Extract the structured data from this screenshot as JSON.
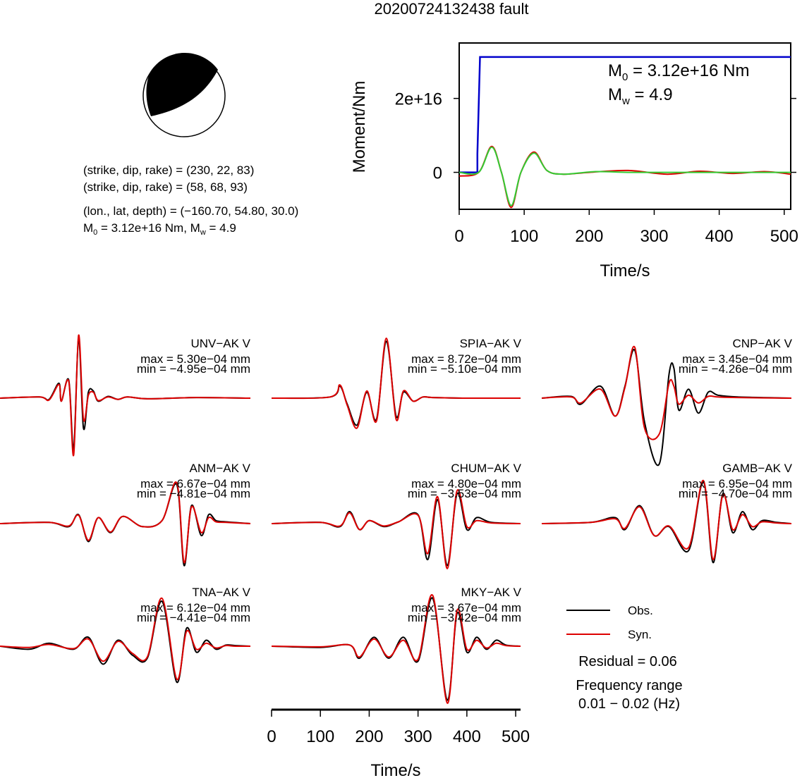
{
  "title": "20200724132438 fault",
  "mechanism": {
    "line1": "(strike, dip, rake) = (230, 22, 83)",
    "line2": "(strike, dip, rake) = (58, 68, 93)",
    "line3": "(lon., lat, depth) = (−160.70, 54.80, 30.0)",
    "m0_label": "M",
    "m0_sub": "0",
    "m0_value": " = 3.12e+16 Nm, M",
    "mw_sub": "w",
    "mw_value": " = 4.9"
  },
  "moment_panel": {
    "ylabel": "Moment/Nm",
    "xlabel": "Time/s",
    "xticks": [
      "0",
      "100",
      "200",
      "300",
      "400",
      "500"
    ],
    "yticks": [
      "0",
      "2e+16"
    ],
    "m0_text": " = 3.12e+16 Nm",
    "mw_text": " = 4.9",
    "m_letter": "M",
    "m0_sub": "0",
    "mw_sub": "w"
  },
  "legend": {
    "obs": "Obs.",
    "syn": "Syn.",
    "residual": "Residual = 0.06",
    "freq_line1": "Frequency range",
    "freq_line2": "0.01 − 0.02 (Hz)"
  },
  "bottom_axis": {
    "xlabel": "Time/s",
    "ticks": [
      "0",
      "100",
      "200",
      "300",
      "400",
      "500"
    ]
  },
  "colors": {
    "observed": "#000000",
    "synthetic": "#dd0000",
    "moment": "#0000cc",
    "green": "#33cc33",
    "beachball_fill": "#000000"
  },
  "chart_data": [
    {
      "type": "line",
      "name": "moment-function",
      "xlabel": "Time/s",
      "ylabel": "Moment/Nm",
      "xlim": [
        0,
        510
      ],
      "ylim": [
        -1e+16,
        3.5e+16
      ],
      "series": [
        {
          "name": "moment",
          "color": "#0000cc",
          "x": [
            0,
            28,
            28,
            32,
            510
          ],
          "y": [
            0,
            0,
            5000000000000000.0,
            3.12e+16,
            3.12e+16
          ]
        },
        {
          "name": "red",
          "color": "#dd0000",
          "x": [
            0,
            30,
            50,
            65,
            80,
            95,
            115,
            135,
            160,
            200,
            260,
            320,
            370,
            420,
            470,
            510
          ],
          "y": [
            -1000000000000000.0,
            0,
            7000000000000000.0,
            0,
            -9500000000000000.0,
            0,
            5500000000000000.0,
            500000000000000.0,
            -500000000000000.0,
            0,
            500000000000000.0,
            -500000000000000.0,
            300000000000000.0,
            -300000000000000.0,
            200000000000000.0,
            -500000000000000.0
          ]
        },
        {
          "name": "green",
          "color": "#33cc33",
          "x": [
            0,
            30,
            50,
            65,
            80,
            95,
            115,
            135,
            160,
            210,
            260,
            320,
            370,
            420,
            470,
            510
          ],
          "y": [
            0,
            0,
            6800000000000000.0,
            0,
            -9000000000000000.0,
            0,
            5200000000000000.0,
            500000000000000.0,
            -500000000000000.0,
            200000000000000.0,
            0,
            0,
            0,
            0,
            0,
            0
          ]
        }
      ]
    },
    {
      "type": "line",
      "station": "UNV−AK V",
      "max": "max = 5.30e−04 mm",
      "min": "min = −4.95e−04 mm",
      "xlim": [
        0,
        510
      ],
      "series": [
        {
          "name": "Obs.",
          "x": [
            0,
            80,
            100,
            120,
            125,
            140,
            150,
            160,
            170,
            180,
            190,
            200,
            220,
            240,
            260,
            300,
            400,
            510
          ],
          "y": [
            0,
            0.02,
            -0.02,
            0.25,
            -0.05,
            0.3,
            -0.85,
            1.0,
            -0.5,
            0.1,
            0.12,
            -0.05,
            0.03,
            -0.02,
            0.02,
            -0.01,
            0.01,
            0
          ]
        },
        {
          "name": "Syn.",
          "x": [
            0,
            80,
            100,
            120,
            125,
            140,
            150,
            160,
            170,
            180,
            190,
            200,
            220,
            240,
            260,
            300,
            400,
            510
          ],
          "y": [
            0,
            0.02,
            -0.03,
            0.23,
            -0.05,
            0.28,
            -0.95,
            1.05,
            -0.35,
            0.05,
            0.1,
            -0.04,
            0.02,
            -0.02,
            0.02,
            -0.01,
            0.01,
            0
          ]
        }
      ]
    },
    {
      "type": "line",
      "station": "SPIA−AK V",
      "max": "max = 8.72e−04 mm",
      "min": "min = −5.10e−04 mm",
      "xlim": [
        0,
        510
      ],
      "series": [
        {
          "name": "Obs.",
          "x": [
            0,
            120,
            140,
            155,
            175,
            195,
            215,
            235,
            255,
            270,
            290,
            310,
            330,
            400,
            510
          ],
          "y": [
            0,
            0.02,
            0.2,
            -0.1,
            -0.45,
            0.1,
            -0.35,
            0.95,
            -0.3,
            0.1,
            -0.05,
            0.02,
            0.01,
            0,
            0
          ]
        },
        {
          "name": "Syn.",
          "x": [
            0,
            120,
            140,
            155,
            175,
            195,
            215,
            235,
            255,
            270,
            290,
            310,
            330,
            400,
            510
          ],
          "y": [
            0,
            0.02,
            0.22,
            -0.12,
            -0.5,
            0.12,
            -0.38,
            1.0,
            -0.35,
            0.12,
            -0.05,
            0.02,
            0.01,
            0,
            0
          ]
        }
      ]
    },
    {
      "type": "line",
      "station": "CNP−AK V",
      "max": "max = 3.45e−04 mm",
      "min": "min = −4.26e−04 mm",
      "xlim": [
        0,
        510
      ],
      "series": [
        {
          "name": "Obs.",
          "x": [
            0,
            60,
            80,
            120,
            150,
            170,
            190,
            210,
            240,
            260,
            270,
            280,
            300,
            320,
            340,
            360,
            400,
            510
          ],
          "y": [
            0,
            0.03,
            -0.1,
            0.2,
            -0.3,
            0.2,
            0.8,
            -0.4,
            -1.1,
            0.4,
            0.5,
            -0.2,
            0.15,
            -0.25,
            0.1,
            0.05,
            0.02,
            0
          ]
        },
        {
          "name": "Syn.",
          "x": [
            0,
            60,
            80,
            120,
            150,
            170,
            190,
            210,
            240,
            260,
            270,
            280,
            300,
            320,
            340,
            360,
            400,
            510
          ],
          "y": [
            0,
            0.02,
            -0.08,
            0.15,
            -0.3,
            0.18,
            0.85,
            -0.5,
            -0.6,
            0.25,
            0.2,
            -0.1,
            0.05,
            -0.08,
            0.03,
            0.02,
            0.01,
            0
          ]
        }
      ]
    },
    {
      "type": "line",
      "station": "ANM−AK V",
      "max": "max = 6.67e−04 mm",
      "min": "min = −4.81e−04 mm",
      "xlim": [
        0,
        510
      ],
      "series": [
        {
          "name": "Obs.",
          "x": [
            0,
            100,
            140,
            160,
            180,
            200,
            225,
            250,
            290,
            330,
            360,
            375,
            390,
            410,
            425,
            440,
            460,
            510
          ],
          "y": [
            0,
            0.02,
            -0.05,
            0.15,
            -0.3,
            0.1,
            -0.15,
            0.12,
            -0.05,
            0.05,
            0.65,
            -0.7,
            0.3,
            -0.2,
            0.15,
            0.05,
            0.03,
            0
          ]
        },
        {
          "name": "Syn.",
          "x": [
            0,
            100,
            140,
            160,
            180,
            200,
            225,
            250,
            290,
            330,
            360,
            375,
            390,
            410,
            425,
            440,
            460,
            510
          ],
          "y": [
            0,
            0.02,
            -0.04,
            0.14,
            -0.28,
            0.1,
            -0.14,
            0.12,
            -0.05,
            0.05,
            0.68,
            -0.65,
            0.28,
            -0.15,
            0.1,
            0.03,
            0.02,
            0
          ]
        }
      ]
    },
    {
      "type": "line",
      "station": "CHUM−AK V",
      "max": "max = 4.80e−04 mm",
      "min": "min = −3.53e−04 mm",
      "xlim": [
        0,
        510
      ],
      "series": [
        {
          "name": "Obs.",
          "x": [
            0,
            100,
            140,
            160,
            180,
            200,
            230,
            260,
            300,
            320,
            340,
            360,
            380,
            400,
            420,
            450,
            510
          ],
          "y": [
            0,
            0.02,
            -0.05,
            0.2,
            -0.1,
            0.05,
            -0.05,
            0.03,
            0.15,
            -0.6,
            0.4,
            -0.7,
            0.5,
            -0.1,
            0.1,
            0.02,
            0
          ]
        },
        {
          "name": "Syn.",
          "x": [
            0,
            100,
            140,
            160,
            180,
            200,
            230,
            260,
            300,
            320,
            340,
            360,
            380,
            400,
            420,
            450,
            510
          ],
          "y": [
            0,
            0.02,
            -0.04,
            0.18,
            -0.1,
            0.05,
            -0.04,
            0.03,
            0.14,
            -0.5,
            0.45,
            -0.75,
            0.55,
            -0.05,
            0.05,
            0.01,
            0
          ]
        }
      ]
    },
    {
      "type": "line",
      "station": "GAMB−AK V",
      "max": "max = 6.95e−04 mm",
      "min": "min = −4.70e−04 mm",
      "xlim": [
        0,
        510
      ],
      "series": [
        {
          "name": "Obs.",
          "x": [
            0,
            100,
            150,
            170,
            200,
            230,
            260,
            300,
            330,
            350,
            370,
            390,
            410,
            430,
            450,
            480,
            510
          ],
          "y": [
            0,
            0.02,
            0.1,
            -0.1,
            0.3,
            -0.2,
            -0.05,
            -0.45,
            0.7,
            -0.65,
            0.5,
            -0.15,
            0.2,
            -0.1,
            0.05,
            0.02,
            0
          ]
        },
        {
          "name": "Syn.",
          "x": [
            0,
            100,
            150,
            170,
            200,
            230,
            260,
            300,
            330,
            350,
            370,
            390,
            410,
            430,
            450,
            480,
            510
          ],
          "y": [
            0,
            0.02,
            0.08,
            -0.08,
            0.28,
            -0.2,
            -0.04,
            -0.4,
            0.72,
            -0.6,
            0.48,
            -0.1,
            0.15,
            -0.05,
            0.03,
            0.01,
            0
          ]
        }
      ]
    },
    {
      "type": "line",
      "station": "TNA−AK V",
      "max": "max = 6.12e−04 mm",
      "min": "min = −4.41e−04 mm",
      "xlim": [
        0,
        510
      ],
      "series": [
        {
          "name": "Obs.",
          "x": [
            0,
            60,
            100,
            150,
            180,
            210,
            240,
            270,
            300,
            330,
            360,
            380,
            400,
            420,
            440,
            460,
            480,
            510
          ],
          "y": [
            0,
            -0.05,
            0.05,
            -0.05,
            0.15,
            -0.3,
            0.1,
            -0.15,
            -0.2,
            0.75,
            -0.6,
            0.3,
            -0.1,
            0.1,
            -0.05,
            0.02,
            0.01,
            0
          ]
        },
        {
          "name": "Syn.",
          "x": [
            0,
            60,
            100,
            150,
            180,
            210,
            240,
            270,
            300,
            330,
            360,
            380,
            400,
            420,
            440,
            460,
            480,
            510
          ],
          "y": [
            0,
            -0.02,
            0.03,
            -0.04,
            0.12,
            -0.25,
            0.08,
            -0.12,
            -0.18,
            0.8,
            -0.55,
            0.25,
            -0.05,
            0.05,
            -0.03,
            0.01,
            0,
            0
          ]
        }
      ]
    },
    {
      "type": "line",
      "station": "MKY−AK V",
      "max": "max = 3.67e−04 mm",
      "min": "min = −3.42e−04 mm",
      "xlim": [
        0,
        510
      ],
      "series": [
        {
          "name": "Obs.",
          "x": [
            0,
            100,
            160,
            180,
            210,
            240,
            270,
            300,
            330,
            360,
            380,
            400,
            420,
            440,
            460,
            480,
            510
          ],
          "y": [
            0,
            -0.02,
            0.02,
            -0.2,
            0.15,
            -0.2,
            0.15,
            -0.25,
            0.8,
            -0.9,
            0.55,
            -0.1,
            0.15,
            -0.05,
            0.1,
            0.02,
            0
          ]
        },
        {
          "name": "Syn.",
          "x": [
            0,
            100,
            160,
            180,
            210,
            240,
            270,
            300,
            330,
            360,
            380,
            400,
            420,
            440,
            460,
            480,
            510
          ],
          "y": [
            0,
            -0.01,
            0.02,
            -0.18,
            0.12,
            -0.18,
            0.1,
            -0.22,
            0.85,
            -0.95,
            0.6,
            -0.05,
            0.1,
            -0.03,
            0.05,
            0.01,
            0
          ]
        }
      ]
    }
  ]
}
